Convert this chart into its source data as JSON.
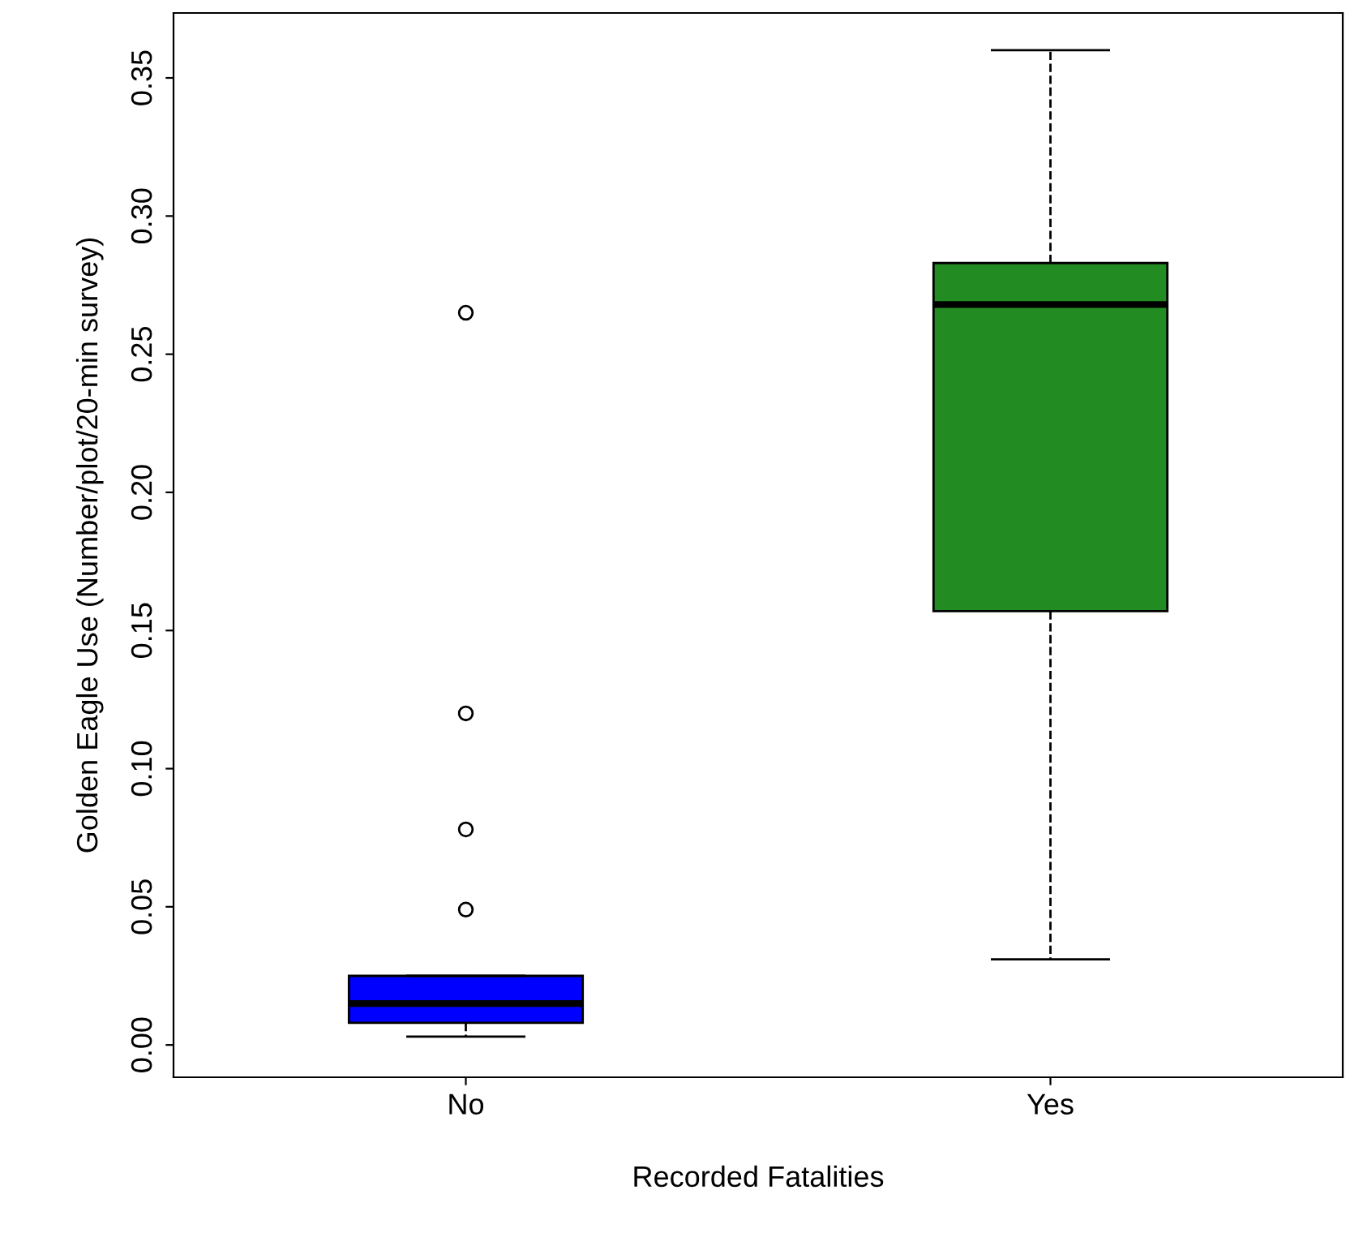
{
  "chart_data": {
    "type": "box",
    "xlabel": "Recorded Fatalities",
    "ylabel": "Golden Eagle Use (Number/plot/20-min survey)",
    "categories": [
      "No",
      "Yes"
    ],
    "colors": [
      "#0000ff",
      "#228b22"
    ],
    "boxes": [
      {
        "low": 0.003,
        "q1": 0.008,
        "median": 0.015,
        "q3": 0.025,
        "high": 0.025,
        "outliers": [
          0.265,
          0.12,
          0.078,
          0.049
        ]
      },
      {
        "low": 0.031,
        "q1": 0.157,
        "median": 0.268,
        "q3": 0.283,
        "high": 0.36
      }
    ],
    "ylim": [
      -0.0117,
      0.3735
    ],
    "yticks": [
      {
        "value": 0,
        "label": "0.00"
      },
      {
        "value": 0.05,
        "label": "0.05"
      },
      {
        "value": 0.1,
        "label": "0.10"
      },
      {
        "value": 0.15,
        "label": "0.15"
      },
      {
        "value": 0.2,
        "label": "0.20"
      },
      {
        "value": 0.25,
        "label": "0.25"
      },
      {
        "value": 0.3,
        "label": "0.30"
      },
      {
        "value": 0.35,
        "label": "0.35"
      }
    ],
    "grid": false,
    "line_style": "dashed",
    "marker": "circle"
  }
}
